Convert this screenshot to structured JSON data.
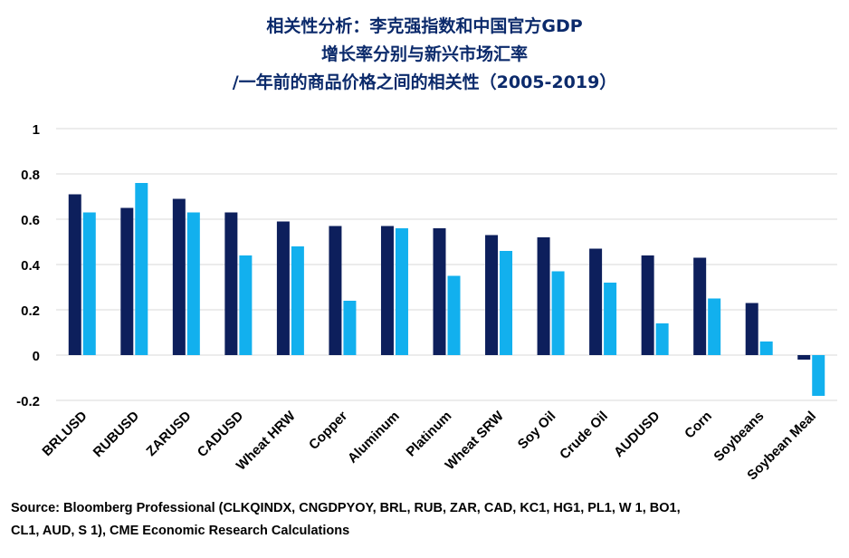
{
  "title_lines": [
    "相关性分析：李克强指数和中国官方GDP",
    "增长率分别与新兴市场汇率",
    "/一年前的商品价格之间的相关性（2005-2019）"
  ],
  "source": {
    "line1": "Source: Bloomberg Professional (CLKQINDX, CNGDPYOY, BRL, RUB, ZAR, CAD, KC1, HG1, PL1, W 1, BO1,",
    "line2": "CL1, AUD, S 1), CME Economic Research Calculations"
  },
  "colors": {
    "series1": "#0d1f5c",
    "series2": "#12b0ee",
    "grid": "#d9d9d9",
    "text": "#000000",
    "title": "#0b2a6b"
  },
  "chart_data": {
    "type": "bar",
    "categories": [
      "BRLUSD",
      "RUBUSD",
      "ZARUSD",
      "CADUSD",
      "Wheat HRW",
      "Copper",
      "Aluminum",
      "Platinum",
      "Wheat SRW",
      "Soy Oil",
      "Crude Oil",
      "AUDUSD",
      "Corn",
      "Soybeans",
      "Soybean Meal"
    ],
    "series": [
      {
        "values": [
          0.71,
          0.65,
          0.69,
          0.63,
          0.59,
          0.57,
          0.57,
          0.56,
          0.53,
          0.52,
          0.47,
          0.44,
          0.43,
          0.23,
          -0.02
        ]
      },
      {
        "values": [
          0.63,
          0.76,
          0.63,
          0.44,
          0.48,
          0.24,
          0.56,
          0.35,
          0.46,
          0.37,
          0.32,
          0.14,
          0.25,
          0.06,
          -0.18
        ]
      }
    ],
    "ylim": [
      -0.2,
      1
    ],
    "yticks": [
      "1",
      "0.8",
      "0.6",
      "0.4",
      "0.2",
      "0",
      "-0.2"
    ],
    "grid": true
  }
}
